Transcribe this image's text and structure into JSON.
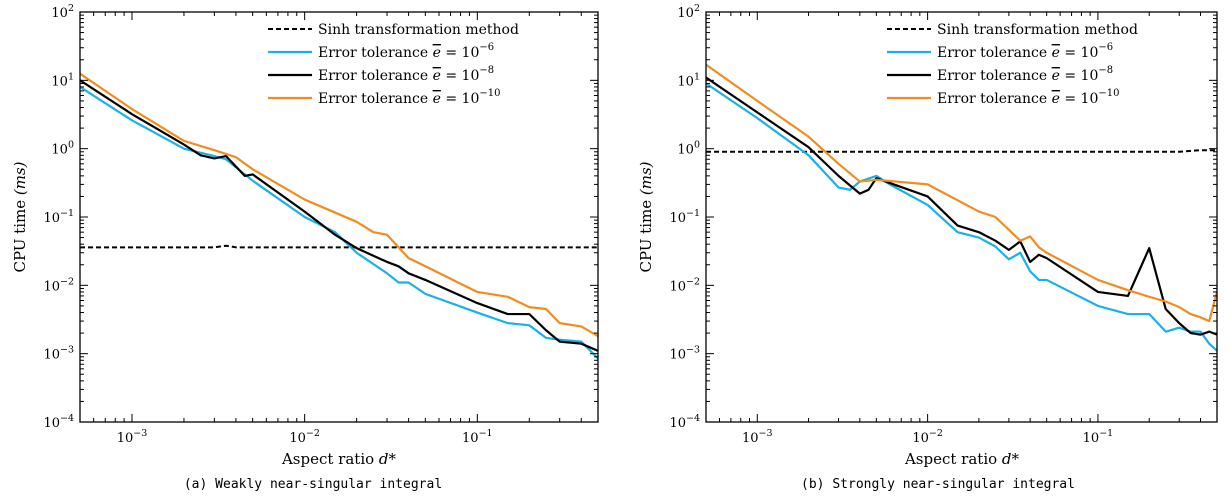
{
  "colors": {
    "Sinh transformation method": "#000000",
    "Error tolerance e = 10^-6": "#1ab0e8",
    "Error tolerance e = 10^-8": "#000000",
    "Error tolerance e = 10^-10": "#f28c1e"
  },
  "chart_data": [
    {
      "type": "line",
      "caption": "(a) Weakly near-singular integral",
      "xlabel": "Aspect ratio",
      "xlabel_symbol": "d*",
      "ylabel": "CPU time",
      "ylabel_unit": "(ms)",
      "xscale": "log",
      "yscale": "log",
      "xlim": [
        0.0005,
        0.5
      ],
      "ylim": [
        0.0001,
        100
      ],
      "legend_position": "top-right",
      "xticks": [
        {
          "value": 0.001,
          "base": "10",
          "exp": "−3"
        },
        {
          "value": 0.01,
          "base": "10",
          "exp": "−2"
        },
        {
          "value": 0.1,
          "base": "10",
          "exp": "−1"
        }
      ],
      "yticks": [
        {
          "value": 0.0001,
          "base": "10",
          "exp": "−4"
        },
        {
          "value": 0.001,
          "base": "10",
          "exp": "−3"
        },
        {
          "value": 0.01,
          "base": "10",
          "exp": "−2"
        },
        {
          "value": 0.1,
          "base": "10",
          "exp": "−1"
        },
        {
          "value": 1,
          "base": "10",
          "exp": "0"
        },
        {
          "value": 10,
          "base": "10",
          "exp": "1"
        },
        {
          "value": 100,
          "base": "10",
          "exp": "2"
        }
      ],
      "series": [
        {
          "name": "Sinh transformation method",
          "style": "dashed",
          "color": "#000000",
          "x": [
            0.0005,
            0.003,
            0.0035,
            0.004,
            0.01,
            0.05,
            0.1,
            0.5
          ],
          "y": [
            0.036,
            0.036,
            0.038,
            0.036,
            0.036,
            0.036,
            0.036,
            0.036
          ]
        },
        {
          "name": "Error tolerance e = 10^-6",
          "style": "solid",
          "color": "#1ab0e8",
          "x": [
            0.0005,
            0.001,
            0.002,
            0.003,
            0.0035,
            0.005,
            0.01,
            0.015,
            0.02,
            0.03,
            0.035,
            0.04,
            0.05,
            0.1,
            0.15,
            0.2,
            0.25,
            0.3,
            0.4,
            0.5
          ],
          "y": [
            8,
            2.6,
            1.0,
            0.78,
            0.7,
            0.34,
            0.1,
            0.06,
            0.03,
            0.015,
            0.011,
            0.011,
            0.0075,
            0.004,
            0.0028,
            0.0026,
            0.0017,
            0.0016,
            0.0015,
            0.00085
          ]
        },
        {
          "name": "Error tolerance e = 10^-8",
          "style": "solid",
          "color": "#000000",
          "x": [
            0.0005,
            0.001,
            0.002,
            0.0025,
            0.003,
            0.0035,
            0.0045,
            0.005,
            0.01,
            0.015,
            0.02,
            0.03,
            0.035,
            0.04,
            0.05,
            0.1,
            0.15,
            0.2,
            0.25,
            0.3,
            0.4,
            0.5
          ],
          "y": [
            10,
            3.2,
            1.15,
            0.8,
            0.72,
            0.78,
            0.4,
            0.42,
            0.12,
            0.055,
            0.035,
            0.022,
            0.019,
            0.015,
            0.012,
            0.0055,
            0.0038,
            0.0038,
            0.0022,
            0.0015,
            0.0014,
            0.0011
          ]
        },
        {
          "name": "Error tolerance e = 10^-10",
          "style": "solid",
          "color": "#f28c1e",
          "x": [
            0.0005,
            0.001,
            0.002,
            0.003,
            0.004,
            0.005,
            0.01,
            0.02,
            0.025,
            0.03,
            0.04,
            0.05,
            0.1,
            0.15,
            0.2,
            0.25,
            0.3,
            0.4,
            0.5
          ],
          "y": [
            12.5,
            3.8,
            1.3,
            0.95,
            0.75,
            0.5,
            0.18,
            0.085,
            0.06,
            0.055,
            0.025,
            0.019,
            0.008,
            0.0068,
            0.0048,
            0.0045,
            0.0028,
            0.0025,
            0.0018
          ]
        }
      ]
    },
    {
      "type": "line",
      "caption": "(b) Strongly near-singular integral",
      "xlabel": "Aspect ratio",
      "xlabel_symbol": "d*",
      "ylabel": "CPU time",
      "ylabel_unit": "(ms)",
      "xscale": "log",
      "yscale": "log",
      "xlim": [
        0.0005,
        0.5
      ],
      "ylim": [
        0.0001,
        100
      ],
      "legend_position": "top-right",
      "xticks": [
        {
          "value": 0.001,
          "base": "10",
          "exp": "−3"
        },
        {
          "value": 0.01,
          "base": "10",
          "exp": "−2"
        },
        {
          "value": 0.1,
          "base": "10",
          "exp": "−1"
        }
      ],
      "yticks": [
        {
          "value": 0.0001,
          "base": "10",
          "exp": "−4"
        },
        {
          "value": 0.001,
          "base": "10",
          "exp": "−3"
        },
        {
          "value": 0.01,
          "base": "10",
          "exp": "−2"
        },
        {
          "value": 0.1,
          "base": "10",
          "exp": "−1"
        },
        {
          "value": 1,
          "base": "10",
          "exp": "0"
        },
        {
          "value": 10,
          "base": "10",
          "exp": "1"
        },
        {
          "value": 100,
          "base": "10",
          "exp": "2"
        }
      ],
      "series": [
        {
          "name": "Sinh transformation method",
          "style": "dashed",
          "color": "#000000",
          "x": [
            0.0005,
            0.01,
            0.1,
            0.3,
            0.4,
            0.5
          ],
          "y": [
            0.9,
            0.9,
            0.9,
            0.9,
            0.95,
            0.95
          ]
        },
        {
          "name": "Error tolerance e = 10^-6",
          "style": "solid",
          "color": "#1ab0e8",
          "x": [
            0.0005,
            0.001,
            0.002,
            0.003,
            0.0035,
            0.004,
            0.005,
            0.006,
            0.01,
            0.015,
            0.02,
            0.025,
            0.03,
            0.035,
            0.04,
            0.045,
            0.05,
            0.1,
            0.15,
            0.2,
            0.25,
            0.3,
            0.35,
            0.4,
            0.45,
            0.5
          ],
          "y": [
            9,
            2.8,
            0.8,
            0.27,
            0.25,
            0.33,
            0.4,
            0.3,
            0.15,
            0.06,
            0.05,
            0.037,
            0.024,
            0.03,
            0.016,
            0.012,
            0.012,
            0.005,
            0.0038,
            0.0038,
            0.0021,
            0.0024,
            0.0021,
            0.0021,
            0.0014,
            0.0011
          ]
        },
        {
          "name": "Error tolerance e = 10^-8",
          "style": "solid",
          "color": "#000000",
          "x": [
            0.0005,
            0.001,
            0.002,
            0.003,
            0.004,
            0.0045,
            0.005,
            0.01,
            0.015,
            0.02,
            0.025,
            0.03,
            0.035,
            0.04,
            0.045,
            0.05,
            0.1,
            0.15,
            0.2,
            0.25,
            0.3,
            0.35,
            0.4,
            0.45,
            0.5
          ],
          "y": [
            11,
            3.4,
            1.05,
            0.4,
            0.22,
            0.25,
            0.37,
            0.2,
            0.075,
            0.06,
            0.045,
            0.033,
            0.044,
            0.022,
            0.028,
            0.025,
            0.008,
            0.007,
            0.035,
            0.0045,
            0.0028,
            0.002,
            0.0019,
            0.0021,
            0.0019
          ]
        },
        {
          "name": "Error tolerance e = 10^-10",
          "style": "solid",
          "color": "#f28c1e",
          "x": [
            0.0005,
            0.001,
            0.002,
            0.003,
            0.004,
            0.005,
            0.01,
            0.02,
            0.025,
            0.03,
            0.035,
            0.04,
            0.045,
            0.05,
            0.1,
            0.15,
            0.2,
            0.25,
            0.3,
            0.35,
            0.4,
            0.45,
            0.5
          ],
          "y": [
            17,
            5.0,
            1.5,
            0.6,
            0.33,
            0.35,
            0.3,
            0.12,
            0.1,
            0.065,
            0.045,
            0.052,
            0.036,
            0.03,
            0.012,
            0.0085,
            0.0068,
            0.0058,
            0.0048,
            0.0038,
            0.0034,
            0.003,
            0.008
          ]
        }
      ]
    }
  ]
}
